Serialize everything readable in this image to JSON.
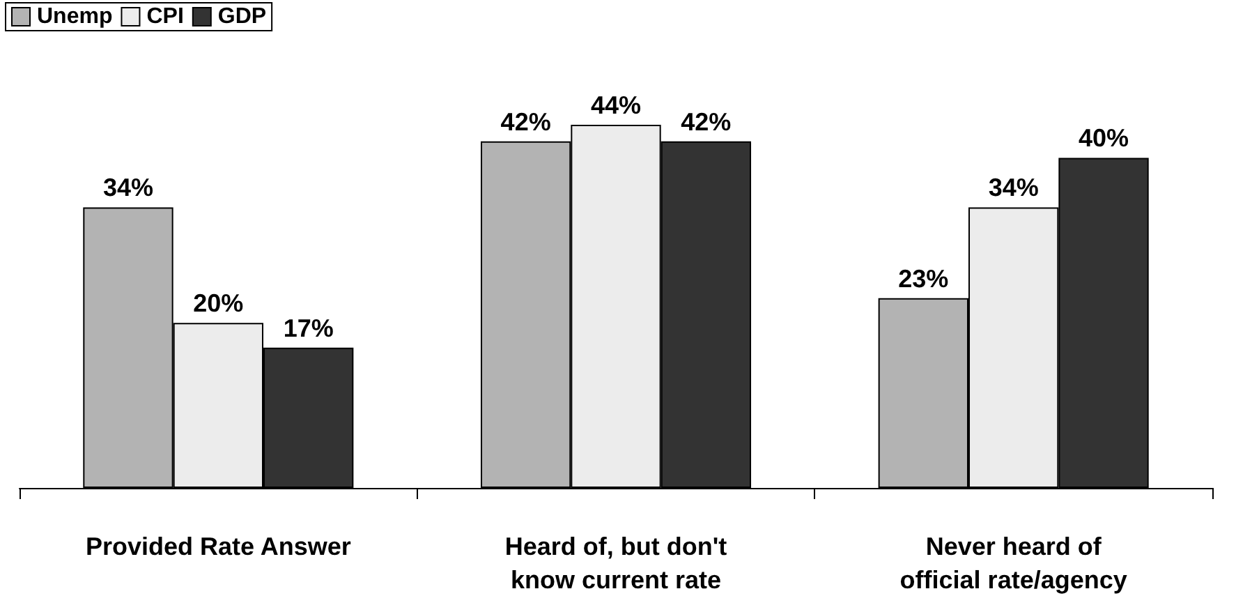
{
  "chart_data": {
    "type": "bar",
    "categories": [
      "Provided Rate Answer",
      "Heard of, but don't\nknow current rate",
      "Never heard of\nofficial rate/agency"
    ],
    "series": [
      {
        "name": "Unemp",
        "color": "#b3b3b3",
        "values": [
          34,
          42,
          23
        ],
        "value_labels": [
          "34%",
          "42%",
          "23%"
        ]
      },
      {
        "name": "CPI",
        "color": "#ececec",
        "values": [
          20,
          44,
          34
        ],
        "value_labels": [
          "20%",
          "44%",
          "34%"
        ]
      },
      {
        "name": "GDP",
        "color": "#333333",
        "values": [
          17,
          42,
          40
        ],
        "value_labels": [
          "17%",
          "42%",
          "40%"
        ]
      }
    ],
    "legend": "top left",
    "grid": false
  }
}
